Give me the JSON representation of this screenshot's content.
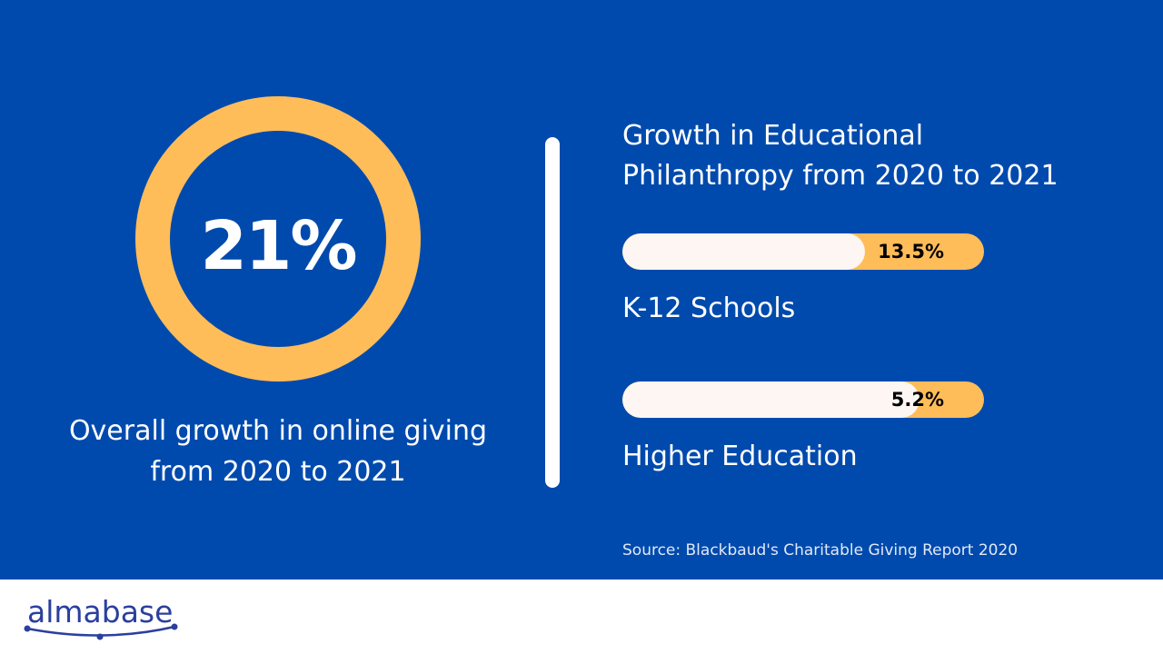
{
  "colors": {
    "background": "#004aad",
    "accent": "#ffbd59",
    "bar_fill": "#fdf6f3",
    "text": "#ffffff",
    "logo": "#2b3f9e"
  },
  "overall": {
    "value_label": "21%",
    "value": 21,
    "caption_line1": "Overall growth in online giving",
    "caption_line2": "from 2020 to 2021"
  },
  "chart_data": {
    "type": "bar",
    "title_line1": "Growth in Educational",
    "title_line2": "Philanthropy from 2020 to 2021",
    "categories": [
      "K-12 Schools",
      "Higher Education"
    ],
    "values": [
      13.5,
      5.2
    ],
    "value_labels": [
      "13.5%",
      "5.2%"
    ],
    "unit": "%"
  },
  "source": "Source: Blackbaud's Charitable Giving Report 2020",
  "logo": {
    "text": "almabase"
  }
}
